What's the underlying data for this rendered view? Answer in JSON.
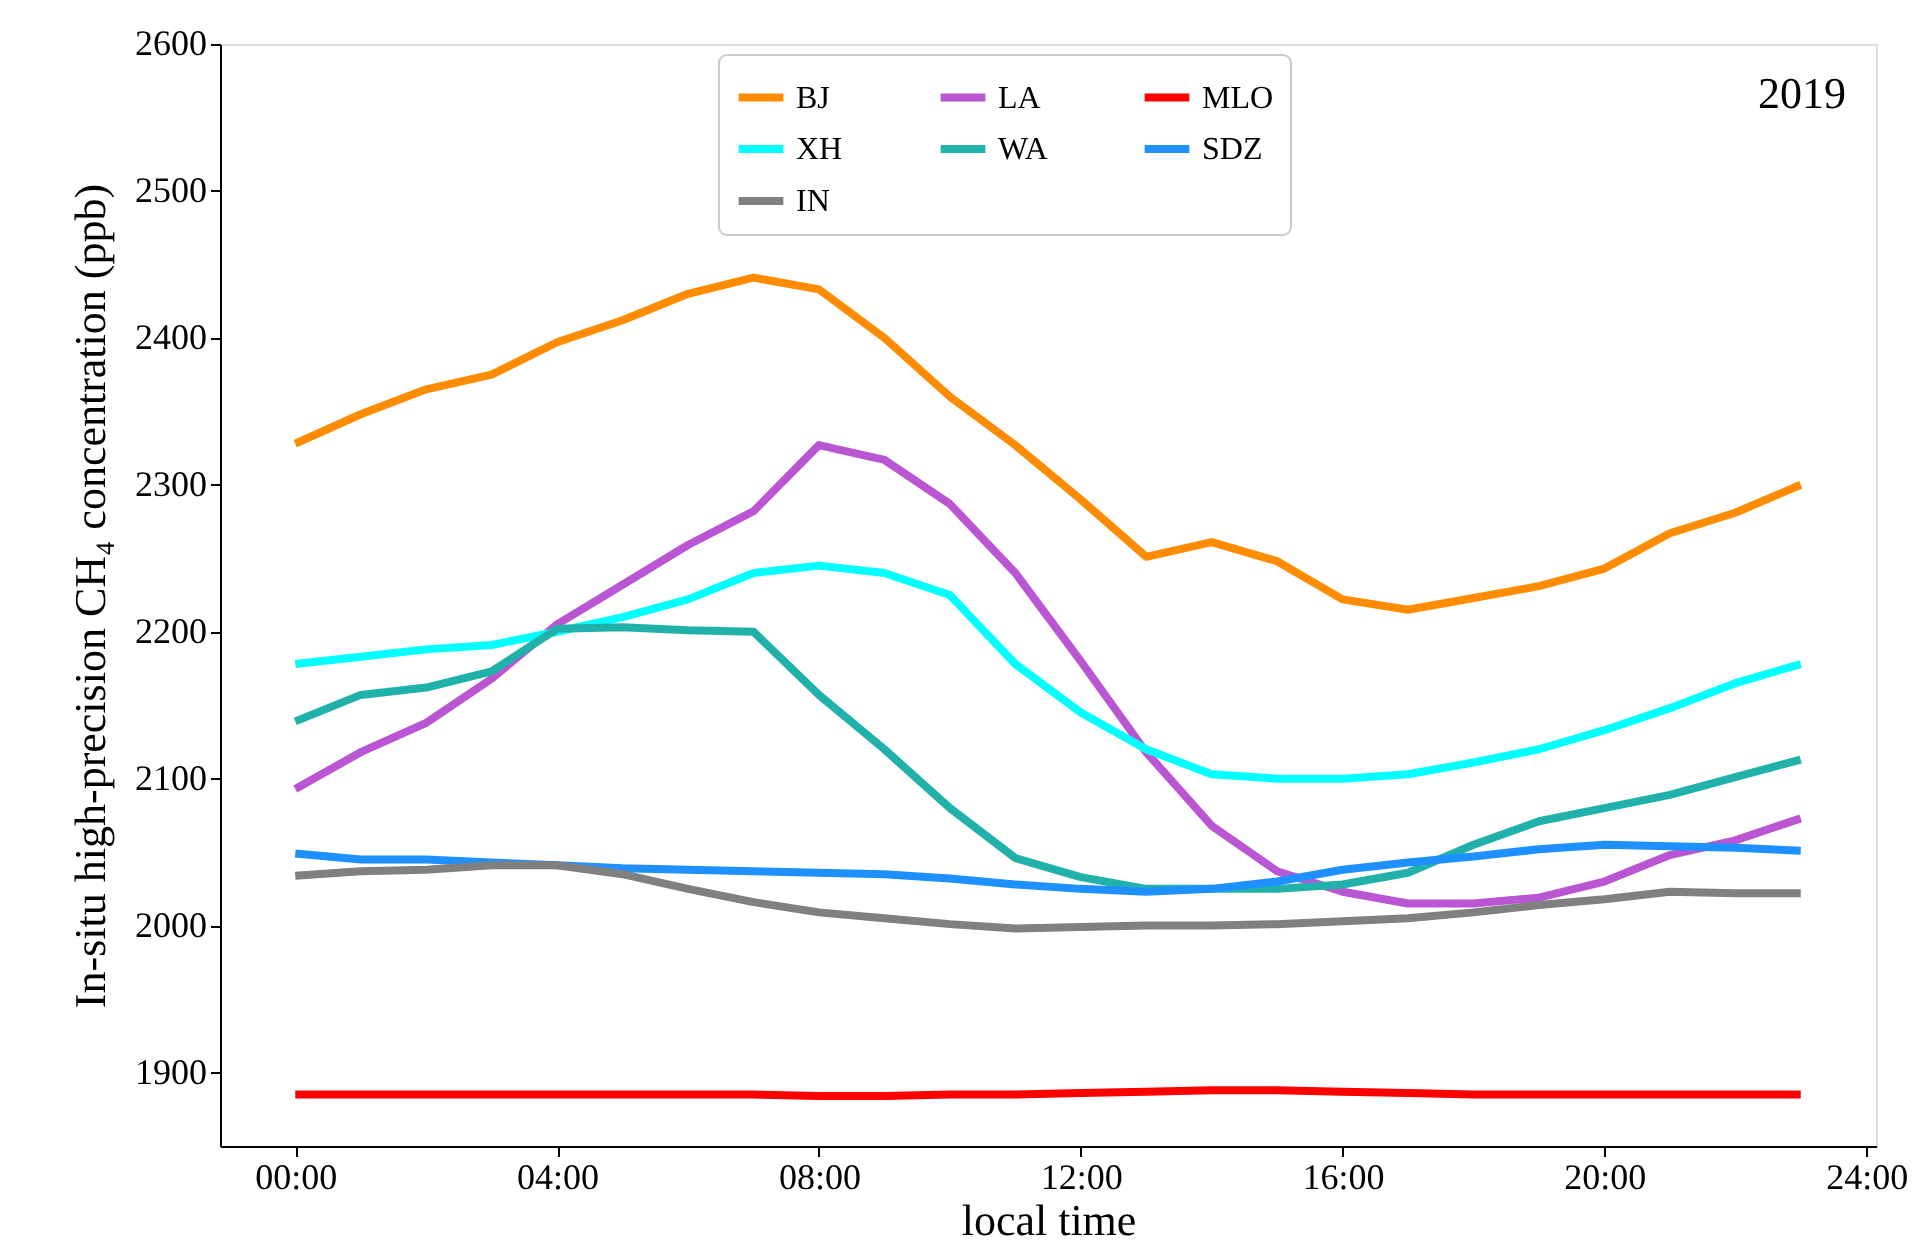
{
  "chart_data": {
    "type": "line",
    "xlabel": "local time",
    "ylabel": "In-situ high-precision CH₄ concentration (ppb)",
    "annotations": [
      "2019"
    ],
    "x": [
      0,
      1,
      2,
      3,
      4,
      5,
      6,
      7,
      8,
      9,
      10,
      11,
      12,
      13,
      14,
      15,
      16,
      17,
      18,
      19,
      20,
      21,
      22,
      23
    ],
    "series": [
      {
        "name": "BJ",
        "color": "#ff8c00",
        "values": [
          2328,
          2348,
          2365,
          2375,
          2397,
          2412,
          2430,
          2441,
          2433,
          2400,
          2360,
          2327,
          2290,
          2251,
          2261,
          2248,
          2222,
          2215,
          2223,
          2231,
          2243,
          2267,
          2281,
          2300
        ]
      },
      {
        "name": "LA",
        "color": "#ba55d3",
        "values": [
          2093,
          2118,
          2138,
          2168,
          2205,
          2232,
          2259,
          2282,
          2327,
          2317,
          2287,
          2240,
          2180,
          2118,
          2068,
          2037,
          2023,
          2015,
          2015,
          2019,
          2030,
          2048,
          2058,
          2073
        ]
      },
      {
        "name": "MLO",
        "color": "#ff0000",
        "values": [
          1885,
          1885,
          1885,
          1885,
          1885,
          1885,
          1885,
          1885,
          1884,
          1884,
          1885,
          1885,
          1886,
          1887,
          1888,
          1888,
          1887,
          1886,
          1885,
          1885,
          1885,
          1885,
          1885,
          1885
        ]
      },
      {
        "name": "XH",
        "color": "#00ffff",
        "values": [
          2178,
          2183,
          2188,
          2191,
          2200,
          2210,
          2222,
          2240,
          2245,
          2240,
          2225,
          2178,
          2145,
          2120,
          2103,
          2100,
          2100,
          2103,
          2111,
          2120,
          2133,
          2148,
          2165,
          2178
        ]
      },
      {
        "name": "WA",
        "color": "#20b2aa",
        "values": [
          2139,
          2157,
          2162,
          2173,
          2202,
          2203,
          2201,
          2200,
          2157,
          2120,
          2080,
          2046,
          2033,
          2025,
          2025,
          2025,
          2028,
          2036,
          2055,
          2071,
          2080,
          2089,
          2101,
          2113
        ]
      },
      {
        "name": "SDZ",
        "color": "#1e90ff",
        "values": [
          2049,
          2045,
          2045,
          2043,
          2041,
          2039,
          2038,
          2037,
          2036,
          2035,
          2032,
          2028,
          2025,
          2023,
          2025,
          2030,
          2038,
          2043,
          2047,
          2052,
          2055,
          2054,
          2053,
          2051
        ]
      },
      {
        "name": "IN",
        "color": "#808080",
        "values": [
          2034,
          2037,
          2038,
          2041,
          2041,
          2035,
          2025,
          2016,
          2009,
          2005,
          2001,
          1998,
          1999,
          2000,
          2000,
          2001,
          2003,
          2005,
          2009,
          2014,
          2018,
          2023,
          2022,
          2022
        ]
      }
    ],
    "xlim": [
      -1.15,
      24.15
    ],
    "xticks": [
      {
        "value": 0,
        "label": "00:00"
      },
      {
        "value": 4,
        "label": "04:00"
      },
      {
        "value": 8,
        "label": "08:00"
      },
      {
        "value": 12,
        "label": "12:00"
      },
      {
        "value": 16,
        "label": "16:00"
      },
      {
        "value": 20,
        "label": "20:00"
      },
      {
        "value": 24,
        "label": "24:00"
      }
    ],
    "ylim": [
      1850,
      2600
    ],
    "yticks": [
      1900,
      2000,
      2100,
      2200,
      2300,
      2400,
      2500,
      2600
    ],
    "grid": false,
    "legend": "top",
    "marker": "none",
    "line_style": "solid"
  }
}
